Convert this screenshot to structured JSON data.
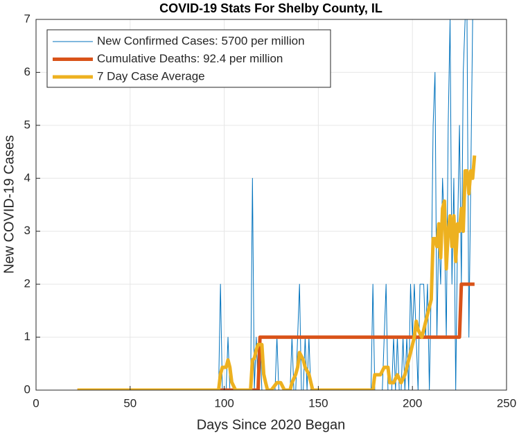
{
  "chart_data": {
    "type": "line",
    "title": "COVID-19 Stats For Shelby County, IL",
    "x_label": "Days Since 2020 Began",
    "y_label": "New COVID-19 Cases",
    "xlim": [
      0,
      250
    ],
    "xticks": [
      0,
      50,
      100,
      150,
      200,
      250
    ],
    "ylim": [
      0,
      7
    ],
    "yticks": [
      0,
      1,
      2,
      3,
      4,
      5,
      6,
      7
    ],
    "grid": true,
    "legend": "upper left",
    "series": [
      {
        "name": "New Confirmed Cases: 5700 per million",
        "color": "#0072BD",
        "width": 1,
        "x": [
          22,
          95,
          96,
          97,
          98,
          99,
          100,
          101,
          102,
          103,
          104,
          105,
          106,
          107,
          108,
          109,
          110,
          111,
          112,
          113,
          114,
          115,
          116,
          117,
          118,
          119,
          120,
          121,
          122,
          123,
          124,
          125,
          126,
          127,
          128,
          129,
          130,
          131,
          132,
          133,
          134,
          135,
          136,
          137,
          138,
          139,
          140,
          141,
          142,
          143,
          144,
          145,
          146,
          147,
          148,
          149,
          150,
          151,
          152,
          153,
          154,
          155,
          156,
          157,
          158,
          159,
          160,
          161,
          162,
          163,
          164,
          165,
          166,
          167,
          168,
          169,
          170,
          171,
          172,
          173,
          174,
          175,
          176,
          177,
          178,
          179,
          180,
          181,
          182,
          183,
          184,
          185,
          186,
          187,
          188,
          189,
          190,
          191,
          192,
          193,
          194,
          195,
          196,
          197,
          198,
          199,
          200,
          201,
          202,
          203,
          204,
          205,
          206,
          207,
          208,
          209,
          210,
          211,
          212,
          213,
          214,
          215,
          216,
          217,
          218,
          219,
          220,
          221,
          222,
          223,
          224,
          225,
          226,
          227,
          228,
          229,
          230,
          231,
          232,
          233
        ],
        "values": [
          0,
          0,
          0,
          0,
          2,
          0,
          0,
          0,
          1,
          0,
          0,
          0,
          0,
          0,
          0,
          0,
          0,
          0,
          0,
          0,
          0,
          4,
          0,
          1,
          0,
          1,
          0,
          0,
          0,
          0,
          0,
          0,
          0,
          0,
          1,
          0,
          0,
          0,
          0,
          0,
          0,
          0,
          1,
          0,
          0,
          1,
          2,
          0,
          0,
          1,
          0,
          1,
          0,
          0,
          0,
          0,
          0,
          0,
          0,
          0,
          0,
          0,
          0,
          0,
          0,
          0,
          0,
          0,
          0,
          0,
          0,
          0,
          0,
          0,
          0,
          0,
          0,
          0,
          0,
          0,
          0,
          0,
          0,
          0,
          0,
          2,
          0,
          0,
          0,
          0,
          0,
          1,
          2,
          0,
          0,
          0,
          1,
          0,
          1,
          0,
          0,
          1,
          0,
          1,
          0,
          2,
          1,
          2,
          1,
          0,
          2,
          2,
          2,
          1,
          2,
          0,
          2,
          5,
          6,
          1,
          3,
          2,
          4,
          3,
          1,
          5,
          7,
          2,
          4,
          0,
          3,
          5,
          2,
          6,
          7,
          7,
          1,
          4,
          7,
          7
        ]
      },
      {
        "name": "Cumulative Deaths: 92.4 per million",
        "color": "#D95319",
        "width": 5,
        "x": [
          22,
          118,
          119,
          225,
          226,
          233
        ],
        "values": [
          0,
          0,
          1,
          1,
          2,
          2
        ]
      },
      {
        "name": "7 Day Case Average",
        "color": "#EDB120",
        "width": 5,
        "x": [
          22,
          97,
          98,
          99,
          101,
          102,
          103,
          104,
          106,
          114,
          115,
          116,
          117,
          118,
          120,
          121,
          122,
          123,
          125,
          128,
          130,
          132,
          135,
          136,
          138,
          139,
          140,
          142,
          143,
          145,
          147,
          179,
          180,
          183,
          185,
          187,
          188,
          190,
          192,
          194,
          196,
          197,
          199,
          201,
          202,
          203,
          205,
          206,
          208,
          210,
          211,
          212,
          213,
          214,
          215,
          216,
          217,
          218,
          219,
          220,
          221,
          222,
          223,
          224,
          225,
          226,
          227,
          228,
          229,
          230,
          231,
          232,
          233
        ],
        "values": [
          0,
          0,
          0.3,
          0.43,
          0.43,
          0.57,
          0.43,
          0.15,
          0,
          0,
          0.57,
          0.6,
          0.76,
          0.86,
          0.86,
          0.3,
          0.14,
          0,
          0,
          0.14,
          0.14,
          0,
          0,
          0.14,
          0.3,
          0.43,
          0.71,
          0.57,
          0.43,
          0.3,
          0,
          0,
          0.29,
          0.29,
          0.43,
          0.43,
          0.14,
          0.14,
          0.29,
          0.14,
          0.29,
          0.43,
          0.71,
          1.0,
          1.3,
          1.14,
          1.0,
          1.14,
          1.43,
          1.71,
          2.86,
          2.86,
          2.71,
          3.14,
          2.5,
          3.43,
          3.57,
          2.29,
          3.0,
          3.29,
          2.71,
          3.29,
          2.43,
          3.14,
          3.0,
          3.43,
          3.0,
          4.14,
          4.14,
          3.71,
          4.14,
          4.0,
          4.43
        ]
      }
    ]
  }
}
